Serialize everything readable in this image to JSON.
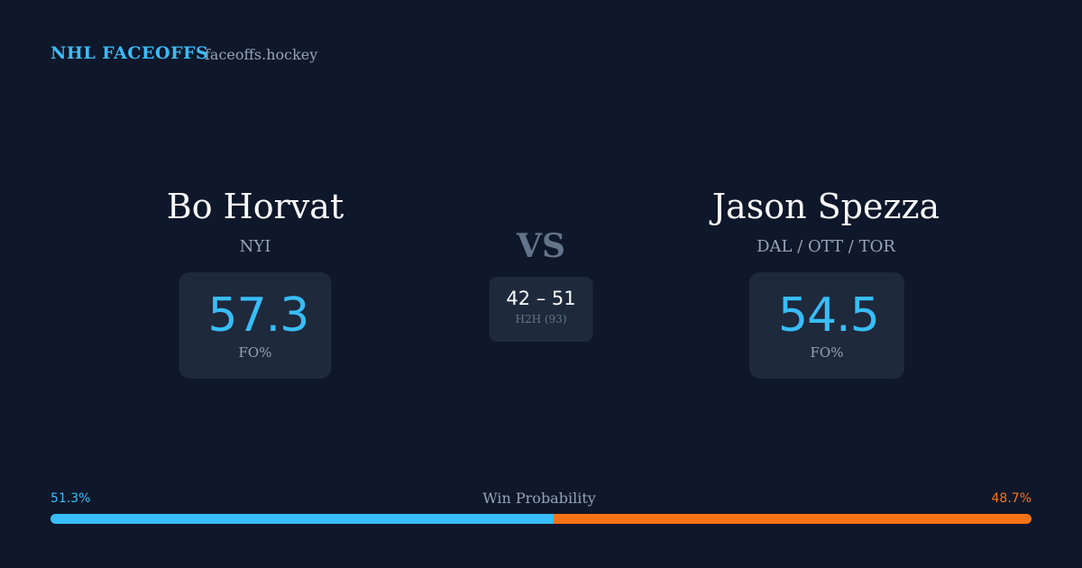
{
  "header": {
    "title": "NHL FACEOFFS",
    "site": "faceoffs.hockey"
  },
  "players": [
    {
      "name": "Bo Horvat",
      "team": "NYI",
      "fo_pct": 57.3,
      "fo_label": "FO%"
    },
    {
      "name": "Jason Spezza",
      "team": "DAL / OTT / TOR",
      "fo_pct": 54.5,
      "fo_label": "FO%"
    }
  ],
  "vs": "VS",
  "h2h": {
    "score": "42 – 51",
    "label": "H2H (93)"
  },
  "win_probability": {
    "label": "Win Probability",
    "values": [
      51.3,
      48.7
    ],
    "value_labels": [
      "51.3%",
      "48.7%"
    ],
    "colors": [
      "#38bdf8",
      "#f97316"
    ]
  }
}
